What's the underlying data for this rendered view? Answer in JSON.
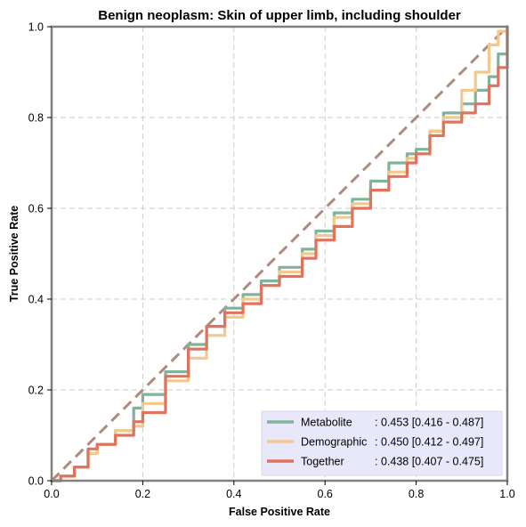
{
  "chart_data": {
    "type": "line",
    "title": "Benign neoplasm: Skin of upper limb, including shoulder",
    "xlabel": "False Positive Rate",
    "ylabel": "True Positive Rate",
    "xlim": [
      0,
      1
    ],
    "ylim": [
      0,
      1
    ],
    "xticks": [
      "0.0",
      "0.2",
      "0.4",
      "0.6",
      "0.8",
      "1.0"
    ],
    "yticks": [
      "0.0",
      "0.2",
      "0.4",
      "0.6",
      "0.8",
      "1.0"
    ],
    "grid": true,
    "legend_position": "bottom-right",
    "diagonal": {
      "x": [
        0,
        1
      ],
      "y": [
        0,
        1
      ],
      "color": "#b08a7e",
      "style": "dashed"
    },
    "series": [
      {
        "name": "Metabolite",
        "legend_value": ": 0.453 [0.416 - 0.487]",
        "color": "#7fb39a",
        "x": [
          0,
          0.02,
          0.05,
          0.08,
          0.1,
          0.14,
          0.18,
          0.2,
          0.25,
          0.3,
          0.34,
          0.38,
          0.42,
          0.46,
          0.5,
          0.55,
          0.58,
          0.62,
          0.66,
          0.7,
          0.74,
          0.78,
          0.8,
          0.83,
          0.86,
          0.9,
          0.93,
          0.96,
          0.98,
          1.0
        ],
        "y": [
          0,
          0.01,
          0.03,
          0.06,
          0.08,
          0.11,
          0.16,
          0.19,
          0.24,
          0.3,
          0.34,
          0.38,
          0.41,
          0.44,
          0.47,
          0.51,
          0.55,
          0.59,
          0.62,
          0.66,
          0.7,
          0.72,
          0.73,
          0.77,
          0.81,
          0.83,
          0.86,
          0.89,
          0.94,
          1.0
        ]
      },
      {
        "name": "Demographic",
        "legend_value": ": 0.450 [0.412 - 0.497]",
        "color": "#f2c98a",
        "x": [
          0,
          0.02,
          0.05,
          0.08,
          0.1,
          0.14,
          0.18,
          0.2,
          0.25,
          0.3,
          0.34,
          0.38,
          0.42,
          0.46,
          0.5,
          0.55,
          0.58,
          0.62,
          0.66,
          0.7,
          0.74,
          0.78,
          0.8,
          0.83,
          0.86,
          0.9,
          0.93,
          0.96,
          0.98,
          1.0
        ],
        "y": [
          0,
          0.01,
          0.03,
          0.06,
          0.08,
          0.11,
          0.12,
          0.17,
          0.22,
          0.27,
          0.32,
          0.36,
          0.4,
          0.43,
          0.46,
          0.5,
          0.54,
          0.58,
          0.61,
          0.64,
          0.68,
          0.71,
          0.72,
          0.77,
          0.8,
          0.86,
          0.9,
          0.96,
          0.99,
          1.0
        ]
      },
      {
        "name": "Together",
        "legend_value": ": 0.438 [0.407 - 0.475]",
        "color": "#e0735e",
        "x": [
          0,
          0.02,
          0.05,
          0.08,
          0.1,
          0.14,
          0.18,
          0.2,
          0.25,
          0.3,
          0.34,
          0.38,
          0.42,
          0.46,
          0.5,
          0.55,
          0.58,
          0.62,
          0.66,
          0.7,
          0.74,
          0.78,
          0.8,
          0.83,
          0.86,
          0.9,
          0.93,
          0.96,
          0.98,
          1.0
        ],
        "y": [
          0,
          0.01,
          0.03,
          0.07,
          0.08,
          0.1,
          0.13,
          0.15,
          0.23,
          0.29,
          0.34,
          0.37,
          0.39,
          0.43,
          0.45,
          0.49,
          0.53,
          0.56,
          0.6,
          0.64,
          0.67,
          0.7,
          0.72,
          0.76,
          0.79,
          0.81,
          0.83,
          0.87,
          0.91,
          1.0
        ]
      }
    ]
  }
}
